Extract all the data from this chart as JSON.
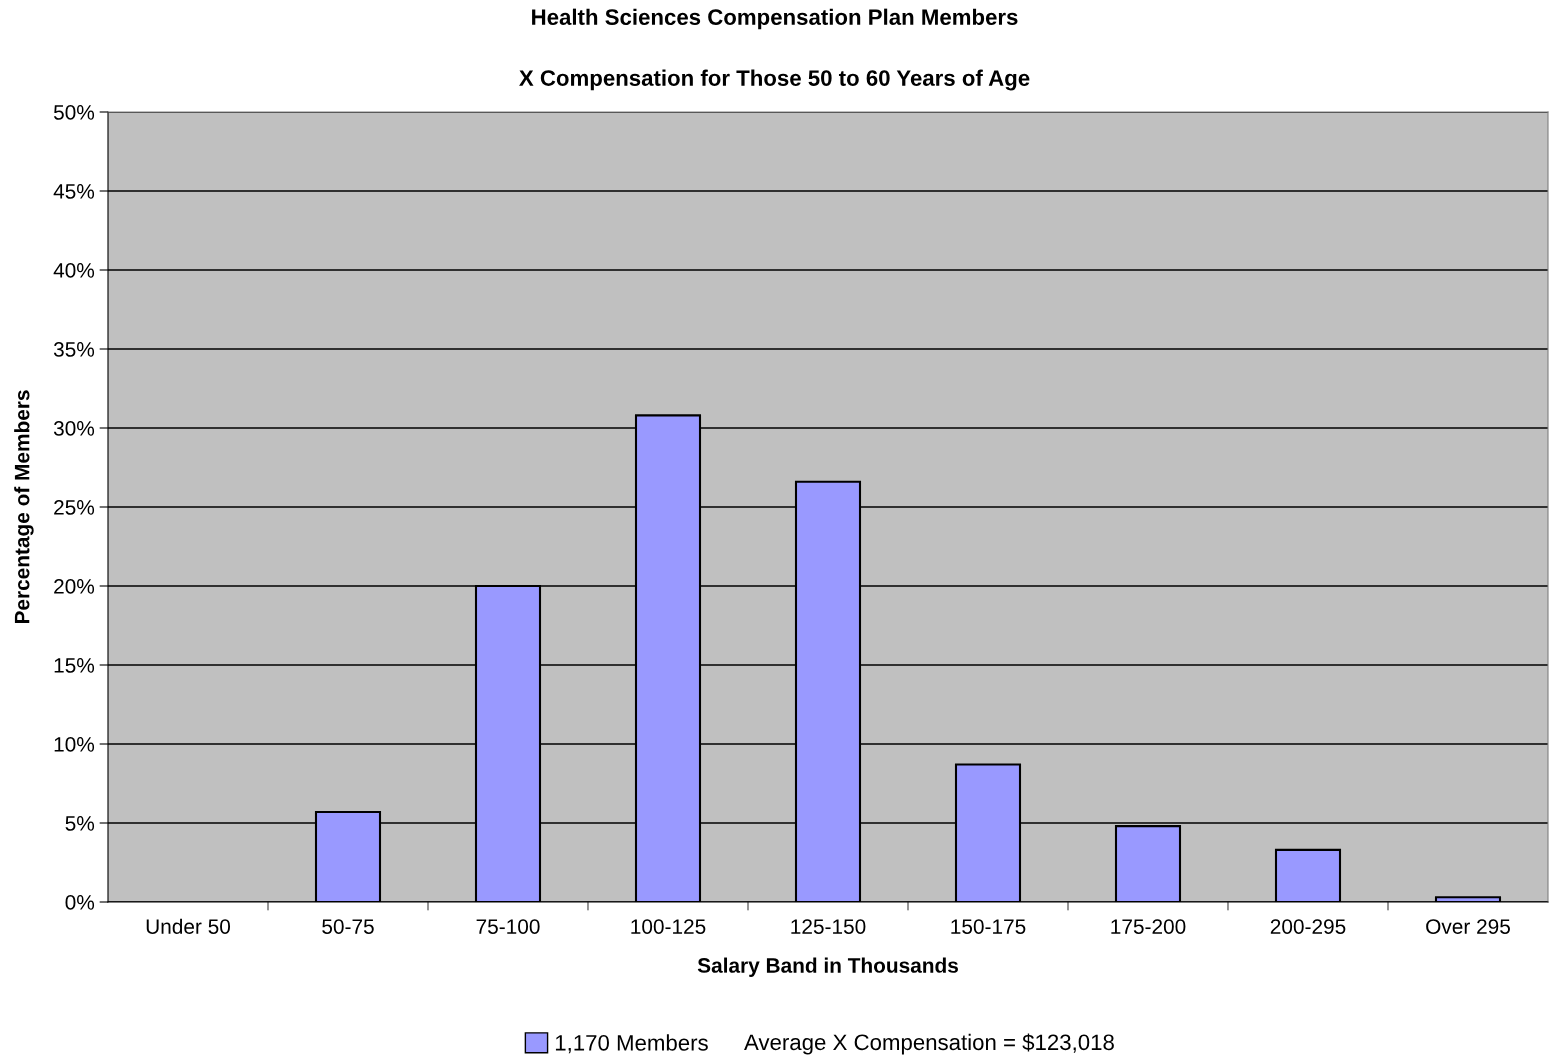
{
  "chart_data": {
    "type": "bar",
    "title": "Health Sciences Compensation Plan Members",
    "subtitle": "X Compensation for Those 50 to 60 Years of Age",
    "xlabel": "Salary Band in Thousands",
    "ylabel": "Percentage of Members",
    "categories": [
      "Under 50",
      "50-75",
      "75-100",
      "100-125",
      "125-150",
      "150-175",
      "175-200",
      "200-295",
      "Over 295"
    ],
    "series": [
      {
        "name": "1,170 Members",
        "color": "#9999ff",
        "values": [
          0,
          5.7,
          20.0,
          30.8,
          26.6,
          8.7,
          4.8,
          3.3,
          0.3
        ]
      }
    ],
    "ylim": [
      0,
      50
    ],
    "yticks": [
      {
        "value": 0,
        "label": "0%"
      },
      {
        "value": 5,
        "label": "5%"
      },
      {
        "value": 10,
        "label": "10%"
      },
      {
        "value": 15,
        "label": "15%"
      },
      {
        "value": 20,
        "label": "20%"
      },
      {
        "value": 25,
        "label": "25%"
      },
      {
        "value": 30,
        "label": "30%"
      },
      {
        "value": 35,
        "label": "35%"
      },
      {
        "value": 40,
        "label": "40%"
      },
      {
        "value": 45,
        "label": "45%"
      },
      {
        "value": 50,
        "label": "50%"
      }
    ],
    "grid": "y",
    "legend": "bottom",
    "annotations": [
      "Average X Compensation = $123,018"
    ]
  }
}
